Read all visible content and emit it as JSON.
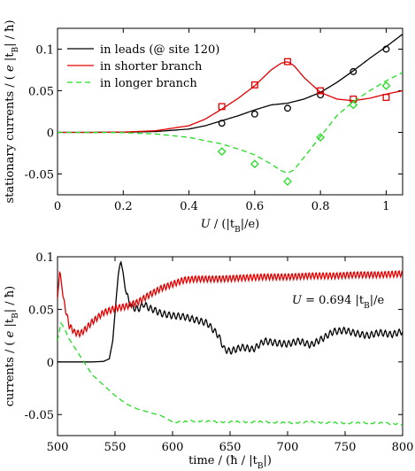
{
  "colors": {
    "leads": "#000000",
    "shorter": "#e00000",
    "longer": "#22dd22"
  },
  "chart_data": [
    {
      "type": "line",
      "xlabel": "U / (|t_B|/e)",
      "xlabel_parts": [
        "U",
        " / (|t",
        "B",
        "|/e)"
      ],
      "ylabel": "stationary currents / ( e |t_B| / ħ)",
      "ylabel_parts": [
        "stationary currents  /  ( ",
        "e",
        " |t",
        "B",
        "| / ħ)"
      ],
      "xlim": [
        0,
        1.05
      ],
      "ylim": [
        -0.075,
        0.125
      ],
      "xticks": [
        0,
        0.2,
        0.4,
        0.6,
        0.8,
        1
      ],
      "xtick_labels": [
        "0",
        "0.2",
        "0.4",
        "0.6",
        "0.8",
        "1"
      ],
      "yticks": [
        -0.05,
        0,
        0.05,
        0.1
      ],
      "ytick_labels": [
        "-0.05",
        "0",
        "0.05",
        "0.1"
      ],
      "legend_position": "top-left",
      "series": [
        {
          "name": "in leads (@ site 120)",
          "style": "solid",
          "x": [
            0,
            0.1,
            0.2,
            0.3,
            0.4,
            0.45,
            0.5,
            0.55,
            0.6,
            0.65,
            0.7,
            0.75,
            0.8,
            0.85,
            0.9,
            0.95,
            1.0,
            1.05
          ],
          "y": [
            0,
            0,
            0.0002,
            0.001,
            0.004,
            0.008,
            0.014,
            0.02,
            0.027,
            0.033,
            0.035,
            0.04,
            0.048,
            0.06,
            0.074,
            0.089,
            0.103,
            0.118
          ],
          "markers": {
            "shape": "circle",
            "x": [
              0.5,
              0.6,
              0.7,
              0.8,
              0.9,
              1.0
            ],
            "y": [
              0.011,
              0.022,
              0.029,
              0.045,
              0.073,
              0.1
            ]
          }
        },
        {
          "name": "in shorter branch",
          "style": "solid",
          "x": [
            0,
            0.1,
            0.2,
            0.3,
            0.4,
            0.45,
            0.5,
            0.55,
            0.6,
            0.65,
            0.68,
            0.7,
            0.72,
            0.75,
            0.8,
            0.85,
            0.9,
            0.95,
            1.0,
            1.05
          ],
          "y": [
            0,
            0,
            0.0003,
            0.002,
            0.008,
            0.016,
            0.028,
            0.041,
            0.056,
            0.075,
            0.083,
            0.085,
            0.08,
            0.066,
            0.048,
            0.04,
            0.038,
            0.041,
            0.046,
            0.05
          ],
          "markers": {
            "shape": "square",
            "x": [
              0.5,
              0.6,
              0.7,
              0.8,
              0.9,
              1.0
            ],
            "y": [
              0.031,
              0.057,
              0.085,
              0.05,
              0.04,
              0.042
            ]
          }
        },
        {
          "name": "in longer branch",
          "style": "dashed",
          "x": [
            0,
            0.1,
            0.2,
            0.3,
            0.4,
            0.45,
            0.5,
            0.55,
            0.6,
            0.65,
            0.68,
            0.7,
            0.72,
            0.75,
            0.8,
            0.85,
            0.9,
            0.95,
            1.0,
            1.05
          ],
          "y": [
            0,
            0,
            -0.0003,
            -0.002,
            -0.006,
            -0.01,
            -0.014,
            -0.02,
            -0.027,
            -0.038,
            -0.046,
            -0.049,
            -0.045,
            -0.03,
            -0.005,
            0.02,
            0.037,
            0.05,
            0.062,
            0.072
          ],
          "markers": {
            "shape": "diamond",
            "x": [
              0.5,
              0.6,
              0.7,
              0.8,
              0.9,
              1.0
            ],
            "y": [
              -0.023,
              -0.038,
              -0.059,
              -0.006,
              0.033,
              0.056
            ]
          }
        }
      ]
    },
    {
      "type": "line",
      "xlabel": "time / (ħ / |t_B|)",
      "xlabel_parts": [
        "time / (ħ / |t",
        "B",
        "|)"
      ],
      "ylabel": "currents / ( e |t_B| / ħ)",
      "ylabel_parts": [
        "currents  /  ( ",
        "e",
        " |t",
        "B",
        "| / ħ)"
      ],
      "xlim": [
        500,
        800
      ],
      "ylim": [
        -0.07,
        0.1
      ],
      "xticks": [
        500,
        550,
        600,
        650,
        700,
        750,
        800
      ],
      "xtick_labels": [
        "500",
        "550",
        "600",
        "650",
        "700",
        "750",
        "800"
      ],
      "yticks": [
        -0.05,
        0,
        0.05,
        0.1
      ],
      "ytick_labels": [
        "-0.05",
        "0",
        "0.05",
        "0.1"
      ],
      "annotation": "U = 0.694 |t_B|/e",
      "annotation_parts": [
        "U",
        " = 0.694  |t",
        "B",
        "|/e"
      ],
      "series": [
        {
          "style": "solid",
          "color_key": "leads",
          "x": [
            500,
            510,
            520,
            530,
            540,
            545,
            548,
            551,
            553,
            555,
            557,
            559,
            562,
            565,
            570,
            575,
            580,
            585,
            590,
            600,
            610,
            620,
            630,
            640,
            645,
            650,
            660,
            670,
            680,
            690,
            700,
            710,
            720,
            730,
            740,
            750,
            760,
            770,
            780,
            790,
            800
          ],
          "y": [
            0,
            0,
            0,
            0,
            0.0005,
            0.003,
            0.02,
            0.06,
            0.085,
            0.096,
            0.085,
            0.068,
            0.058,
            0.052,
            0.05,
            0.055,
            0.051,
            0.049,
            0.046,
            0.044,
            0.043,
            0.04,
            0.037,
            0.025,
            0.012,
            0.01,
            0.014,
            0.012,
            0.02,
            0.018,
            0.017,
            0.02,
            0.016,
            0.022,
            0.029,
            0.03,
            0.027,
            0.025,
            0.028,
            0.026,
            0.029
          ],
          "ripple": {
            "amplitude": 0.003,
            "period": 4,
            "from": 560
          }
        },
        {
          "style": "solid",
          "color_key": "shorter",
          "x": [
            500,
            502,
            505,
            510,
            515,
            520,
            525,
            530,
            540,
            550,
            560,
            570,
            580,
            590,
            600,
            610,
            620,
            640,
            660,
            680,
            700,
            720,
            740,
            760,
            780,
            800
          ],
          "y": [
            0.06,
            0.088,
            0.06,
            0.035,
            0.028,
            0.027,
            0.032,
            0.038,
            0.047,
            0.051,
            0.053,
            0.057,
            0.064,
            0.07,
            0.074,
            0.078,
            0.079,
            0.079,
            0.08,
            0.081,
            0.081,
            0.082,
            0.082,
            0.083,
            0.083,
            0.084
          ],
          "ripple": {
            "amplitude": 0.003,
            "period": 3,
            "from": 505
          }
        },
        {
          "style": "dashed",
          "color_key": "longer",
          "x": [
            500,
            503,
            506,
            510,
            520,
            530,
            540,
            550,
            560,
            570,
            580,
            590,
            600,
            610,
            620,
            640,
            660,
            680,
            700,
            720,
            740,
            760,
            780,
            800
          ],
          "y": [
            0.02,
            0.037,
            0.032,
            0.022,
            0.005,
            -0.012,
            -0.022,
            -0.032,
            -0.04,
            -0.045,
            -0.048,
            -0.051,
            -0.057,
            -0.057,
            -0.056,
            -0.057,
            -0.057,
            -0.057,
            -0.058,
            -0.057,
            -0.058,
            -0.058,
            -0.058,
            -0.059
          ],
          "ripple": {
            "amplitude": 0.0008,
            "period": 5,
            "from": 600
          }
        }
      ]
    }
  ]
}
